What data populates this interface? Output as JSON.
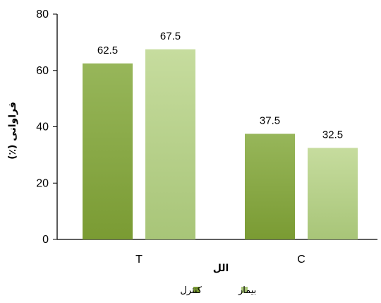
{
  "chart_data": {
    "type": "bar",
    "categories": [
      "T",
      "C"
    ],
    "series": [
      {
        "name": "کنترل",
        "values": [
          62.5,
          37.5
        ],
        "color_top": "#97B65A",
        "color_bottom": "#7A9B33"
      },
      {
        "name": "بیمار",
        "values": [
          67.5,
          32.5
        ],
        "color_top": "#C6DC9E",
        "color_bottom": "#A8C578"
      }
    ],
    "xlabel": "الل",
    "ylabel": "فراوانی (٪)",
    "ylim": [
      0,
      80
    ],
    "yticks": [
      0,
      20,
      40,
      60,
      80
    ],
    "grid": false,
    "legend_position": "bottom"
  }
}
